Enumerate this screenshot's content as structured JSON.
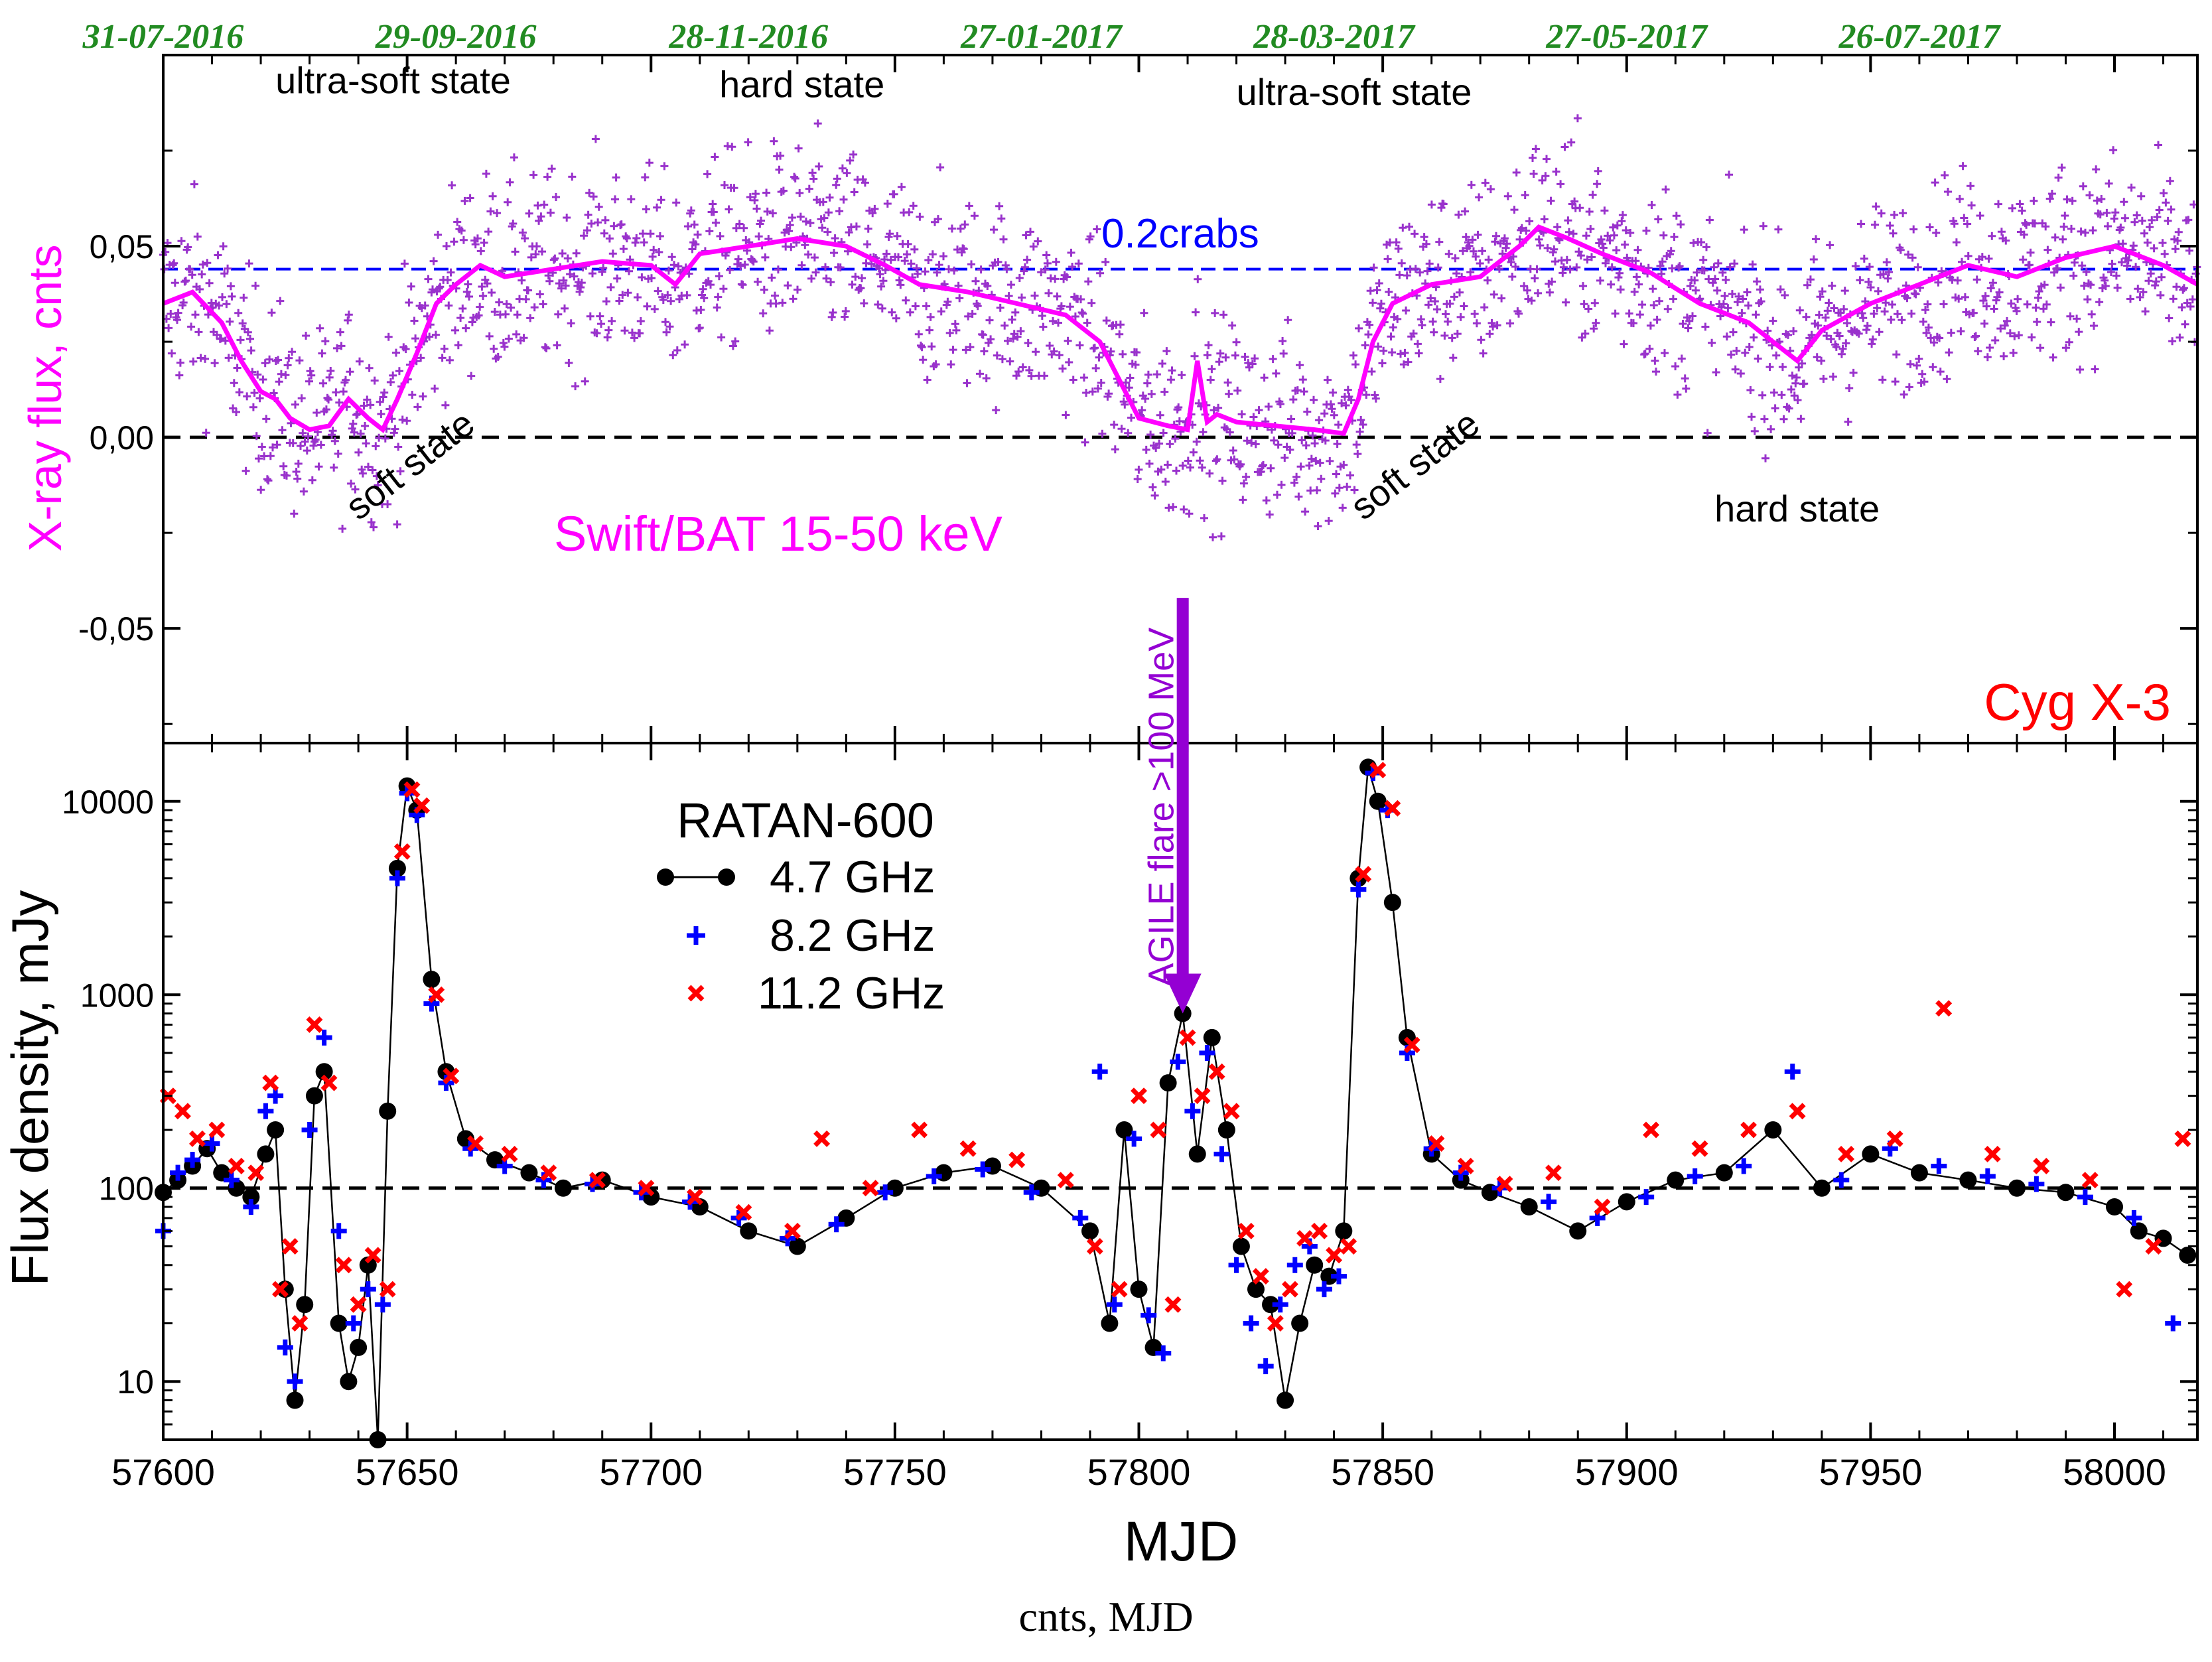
{
  "chart_data": {
    "type": "scatter",
    "object_label": "Cyg X-3",
    "top_dates": [
      "31-07-2016",
      "29-09-2016",
      "28-11-2016",
      "27-01-2017",
      "28-03-2017",
      "27-05-2017",
      "26-07-2017"
    ],
    "top_date_mjd": [
      57600,
      57660,
      57720,
      57780,
      57840,
      57900,
      57960
    ],
    "xlabel": "MJD",
    "xlim": [
      57600,
      58017
    ],
    "xticks": [
      57600,
      57650,
      57700,
      57750,
      57800,
      57850,
      57900,
      57950,
      58000
    ],
    "xray": {
      "ylabel": "X-ray flux, cnts",
      "ylim": [
        -0.08,
        0.1
      ],
      "yticks": [
        -0.05,
        0.0,
        0.05
      ],
      "ytick_labels": [
        "-0,05",
        "0,00",
        "0,05"
      ],
      "instrument_label": "Swift/BAT  15-50 keV",
      "crab_label": "0.2crabs",
      "crab_level": 0.044,
      "zero_level": 0.0,
      "smooth_mjd": [
        57600,
        57606,
        57612,
        57616,
        57620,
        57623,
        57626,
        57630,
        57634,
        57638,
        57642,
        57645,
        57648,
        57652,
        57656,
        57660,
        57665,
        57670,
        57680,
        57690,
        57700,
        57705,
        57710,
        57720,
        57730,
        57740,
        57748,
        57755,
        57765,
        57775,
        57785,
        57792,
        57796,
        57800,
        57806,
        57810,
        57812,
        57814,
        57816,
        57820,
        57828,
        57836,
        57842,
        57845,
        57848,
        57852,
        57860,
        57870,
        57878,
        57882,
        57888,
        57895,
        57905,
        57915,
        57925,
        57930,
        57935,
        57940,
        57950,
        57960,
        57970,
        57980,
        57990,
        58000,
        58010,
        58017
      ],
      "smooth_flux": [
        0.035,
        0.038,
        0.03,
        0.02,
        0.012,
        0.01,
        0.005,
        0.002,
        0.003,
        0.01,
        0.005,
        0.002,
        0.01,
        0.022,
        0.035,
        0.04,
        0.045,
        0.042,
        0.044,
        0.046,
        0.045,
        0.04,
        0.048,
        0.05,
        0.052,
        0.05,
        0.045,
        0.04,
        0.038,
        0.035,
        0.032,
        0.025,
        0.015,
        0.005,
        0.003,
        0.002,
        0.02,
        0.004,
        0.006,
        0.004,
        0.003,
        0.002,
        0.001,
        0.01,
        0.025,
        0.035,
        0.04,
        0.042,
        0.05,
        0.055,
        0.052,
        0.048,
        0.043,
        0.035,
        0.03,
        0.025,
        0.02,
        0.028,
        0.035,
        0.04,
        0.045,
        0.042,
        0.047,
        0.05,
        0.045,
        0.04
      ],
      "annotations": [
        {
          "text": "ultra-soft state",
          "mjd": 57623,
          "flux": 0.09
        },
        {
          "text": "hard state",
          "mjd": 57714,
          "flux": 0.089
        },
        {
          "text": "ultra-soft state",
          "mjd": 57820,
          "flux": 0.087
        },
        {
          "text": "soft state",
          "mjd": 57640,
          "flux": -0.022
        },
        {
          "text": "soft state",
          "mjd": 57846,
          "flux": -0.022
        },
        {
          "text": "hard state",
          "mjd": 57918,
          "flux": -0.022
        }
      ]
    },
    "radio": {
      "ylabel": "Flux density, mJy",
      "yscale": "log",
      "ylim": [
        5,
        20000
      ],
      "yticks": [
        10,
        100,
        1000,
        10000
      ],
      "ytick_labels": [
        "10",
        "100",
        "1000",
        "10000"
      ],
      "reference_level": 100,
      "legend_title": "RATAN-600",
      "series": [
        {
          "name": "4.7 GHz",
          "color": "#000000",
          "marker": "circle",
          "mjd": [
            57600,
            57603,
            57606,
            57609,
            57612,
            57615,
            57618,
            57621,
            57623,
            57625,
            57627,
            57629,
            57631,
            57633,
            57636,
            57638,
            57640,
            57642,
            57644,
            57646,
            57648,
            57650,
            57652,
            57655,
            57658,
            57662,
            57668,
            57675,
            57682,
            57690,
            57700,
            57710,
            57720,
            57730,
            57740,
            57750,
            57760,
            57770,
            57780,
            57790,
            57794,
            57797,
            57800,
            57803,
            57806,
            57809,
            57812,
            57815,
            57818,
            57821,
            57824,
            57827,
            57830,
            57833,
            57836,
            57839,
            57842,
            57845,
            57847,
            57849,
            57852,
            57855,
            57860,
            57866,
            57872,
            57880,
            57890,
            57900,
            57910,
            57920,
            57930,
            57940,
            57950,
            57960,
            57970,
            57980,
            57990,
            58000,
            58005,
            58010,
            58015
          ],
          "flux": [
            95,
            110,
            130,
            160,
            120,
            100,
            90,
            150,
            200,
            30,
            8,
            25,
            300,
            400,
            20,
            10,
            15,
            40,
            5,
            250,
            4500,
            12000,
            9000,
            1200,
            400,
            180,
            140,
            120,
            100,
            110,
            90,
            80,
            60,
            50,
            70,
            100,
            120,
            130,
            100,
            60,
            20,
            200,
            30,
            15,
            350,
            800,
            150,
            600,
            200,
            50,
            30,
            25,
            8,
            20,
            40,
            35,
            60,
            4000,
            15000,
            10000,
            3000,
            600,
            150,
            110,
            95,
            80,
            60,
            85,
            110,
            120,
            200,
            100,
            150,
            120,
            110,
            100,
            95,
            80,
            60,
            55,
            45
          ]
        },
        {
          "name": "8.2 GHz",
          "color": "#0000ff",
          "marker": "plus",
          "mjd": [
            57600,
            57603,
            57606,
            57610,
            57614,
            57618,
            57621,
            57623,
            57625,
            57627,
            57630,
            57633,
            57636,
            57639,
            57642,
            57645,
            57648,
            57650,
            57652,
            57655,
            57658,
            57663,
            57670,
            57678,
            57688,
            57698,
            57708,
            57718,
            57728,
            57738,
            57748,
            57758,
            57768,
            57778,
            57788,
            57792,
            57795,
            57799,
            57802,
            57805,
            57808,
            57811,
            57814,
            57817,
            57820,
            57823,
            57826,
            57829,
            57832,
            57835,
            57838,
            57841,
            57845,
            57848,
            57851,
            57855,
            57860,
            57866,
            57874,
            57884,
            57894,
            57904,
            57914,
            57924,
            57934,
            57944,
            57954,
            57964,
            57974,
            57984,
            57994,
            58004,
            58012
          ],
          "flux": [
            60,
            120,
            140,
            170,
            110,
            80,
            250,
            300,
            15,
            10,
            200,
            600,
            60,
            20,
            30,
            25,
            4000,
            11000,
            8500,
            900,
            350,
            160,
            130,
            110,
            105,
            95,
            85,
            70,
            55,
            65,
            95,
            115,
            125,
            95,
            70,
            400,
            25,
            180,
            22,
            14,
            450,
            250,
            500,
            150,
            40,
            20,
            12,
            25,
            40,
            50,
            30,
            35,
            3500,
            14000,
            9000,
            500,
            160,
            120,
            100,
            85,
            70,
            90,
            115,
            130,
            400,
            110,
            160,
            130,
            115,
            105,
            90,
            70,
            20
          ]
        },
        {
          "name": "11.2 GHz",
          "color": "#ff0000",
          "marker": "cross",
          "mjd": [
            57601,
            57604,
            57607,
            57611,
            57615,
            57619,
            57622,
            57624,
            57626,
            57628,
            57631,
            57634,
            57637,
            57640,
            57643,
            57646,
            57649,
            57651,
            57653,
            57656,
            57659,
            57664,
            57671,
            57679,
            57689,
            57699,
            57709,
            57719,
            57729,
            57735,
            57745,
            57755,
            57765,
            57775,
            57785,
            57791,
            57796,
            57800,
            57804,
            57807,
            57810,
            57813,
            57816,
            57819,
            57822,
            57825,
            57828,
            57831,
            57834,
            57837,
            57840,
            57843,
            57846,
            57849,
            57852,
            57856,
            57861,
            57867,
            57875,
            57885,
            57895,
            57905,
            57915,
            57925,
            57935,
            57945,
            57955,
            57965,
            57975,
            57985,
            57995,
            58002,
            58008,
            58014
          ],
          "flux": [
            300,
            250,
            180,
            200,
            130,
            120,
            350,
            30,
            50,
            20,
            700,
            350,
            40,
            25,
            45,
            30,
            5500,
            11500,
            9500,
            1000,
            380,
            170,
            150,
            120,
            110,
            100,
            90,
            75,
            60,
            180,
            100,
            200,
            160,
            140,
            110,
            50,
            30,
            300,
            200,
            25,
            600,
            300,
            400,
            250,
            60,
            35,
            20,
            30,
            55,
            60,
            45,
            50,
            4200,
            14500,
            9200,
            550,
            170,
            130,
            105,
            120,
            80,
            200,
            160,
            200,
            250,
            150,
            180,
            850,
            150,
            130,
            110,
            30,
            50,
            180
          ]
        }
      ],
      "arrow": {
        "label": "AGILE flare >100 MeV",
        "mjd": 57809,
        "from_flux_xray": -0.042,
        "to_flux_radio": 800
      }
    }
  },
  "caption": "cnts, MJD"
}
